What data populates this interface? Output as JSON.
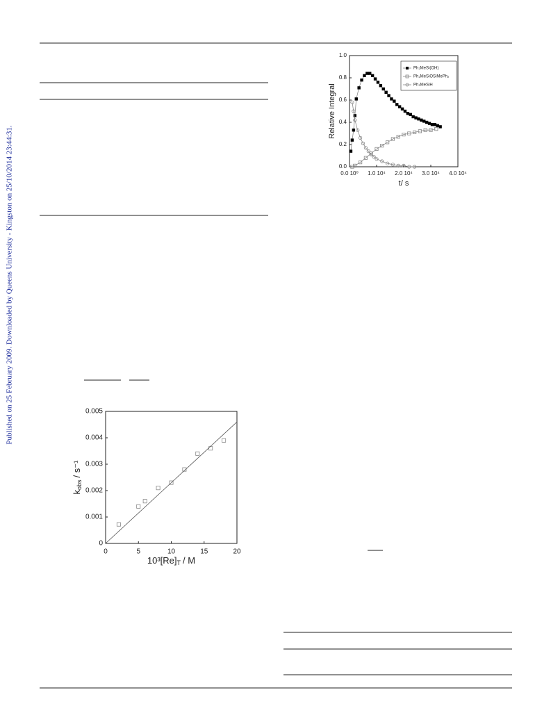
{
  "side_note": "Published on 25 February 2009. Downloaded by Queens University - Kingston on 25/10/2014 23:44:31.",
  "chart_data": [
    {
      "type": "scatter",
      "x_label": "t/ s",
      "y_label": "Relative Integral",
      "xlim": [
        0,
        40000
      ],
      "ylim": [
        0,
        1
      ],
      "xticks": [
        {
          "value": 0,
          "label": "0.0 10⁰"
        },
        {
          "value": 10000,
          "label": "1.0 10⁴"
        },
        {
          "value": 20000,
          "label": "2.0 10⁴"
        },
        {
          "value": 30000,
          "label": "3.0 10⁴"
        },
        {
          "value": 40000,
          "label": "4.0 10⁴"
        }
      ],
      "yticks": [
        {
          "value": 0,
          "label": "0.0"
        },
        0.2,
        0.4,
        0.6,
        0.8,
        {
          "value": 1,
          "label": "1.0"
        }
      ],
      "legend": "upper right",
      "series": [
        {
          "name": "Ph₂MeSi(OH)",
          "color": "#000000",
          "marker": "square-filled",
          "line": true,
          "x": [
            500,
            1000,
            1500,
            2000,
            2500,
            3500,
            4500,
            5500,
            6500,
            7500,
            8500,
            9500,
            10500,
            11500,
            12500,
            13500,
            14500,
            15500,
            16500,
            17500,
            18500,
            19500,
            20500,
            21500,
            22500,
            23500,
            24500,
            25500,
            26500,
            27500,
            28500,
            29500,
            30500,
            31500,
            32500,
            33500
          ],
          "values": [
            0.14,
            0.24,
            0.33,
            0.46,
            0.61,
            0.71,
            0.78,
            0.82,
            0.84,
            0.84,
            0.82,
            0.79,
            0.76,
            0.73,
            0.7,
            0.67,
            0.64,
            0.61,
            0.59,
            0.56,
            0.54,
            0.52,
            0.5,
            0.48,
            0.47,
            0.45,
            0.44,
            0.43,
            0.42,
            0.41,
            0.4,
            0.39,
            0.38,
            0.38,
            0.37,
            0.36
          ]
        },
        {
          "name": "Ph₂MeSiOSiMePh₂",
          "color": "#888888",
          "marker": "square-open",
          "line": true,
          "x": [
            1000,
            2000,
            4000,
            6000,
            8000,
            10000,
            12000,
            14000,
            16000,
            18000,
            20000,
            22000,
            24000,
            26000,
            28000,
            30000,
            32000
          ],
          "values": [
            0,
            0.01,
            0.04,
            0.08,
            0.12,
            0.16,
            0.19,
            0.22,
            0.25,
            0.27,
            0.29,
            0.3,
            0.31,
            0.32,
            0.33,
            0.33,
            0.34
          ]
        },
        {
          "name": "Ph₂MeSiH",
          "color": "#888888",
          "marker": "circle-open",
          "line": true,
          "x": [
            1000,
            1500,
            2000,
            3000,
            4000,
            5000,
            6000,
            7000,
            8000,
            9000,
            10000,
            12000,
            14000,
            16000,
            18000,
            20000,
            22000,
            24000
          ],
          "values": [
            0.58,
            0.5,
            0.42,
            0.33,
            0.26,
            0.21,
            0.17,
            0.14,
            0.11,
            0.09,
            0.07,
            0.05,
            0.03,
            0.02,
            0.01,
            0.01,
            0,
            0
          ]
        }
      ]
    },
    {
      "type": "scatter",
      "x_label": "10³[Re]",
      "x_label_sub": "T",
      "x_label_end": "/ M",
      "y_label": "k",
      "y_label_sub": "obs",
      "y_label_end": "/ s⁻¹",
      "xlim": [
        0,
        20
      ],
      "ylim": [
        0,
        0.005
      ],
      "xticks": [
        0,
        5,
        10,
        15,
        20
      ],
      "yticks": [
        0,
        0.001,
        0.002,
        0.003,
        0.004,
        0.005
      ],
      "series": [
        {
          "color": "#888888",
          "marker": "square-open",
          "line": false,
          "x": [
            2,
            5,
            6,
            8,
            10,
            12,
            14,
            16,
            18
          ],
          "values": [
            0.00072,
            0.0014,
            0.0016,
            0.0021,
            0.0023,
            0.0028,
            0.0034,
            0.0036,
            0.0039
          ]
        },
        {
          "color": "#555555",
          "marker": "none",
          "line": true,
          "x": [
            0,
            20
          ],
          "values": [
            0,
            0.0046
          ]
        }
      ]
    }
  ]
}
